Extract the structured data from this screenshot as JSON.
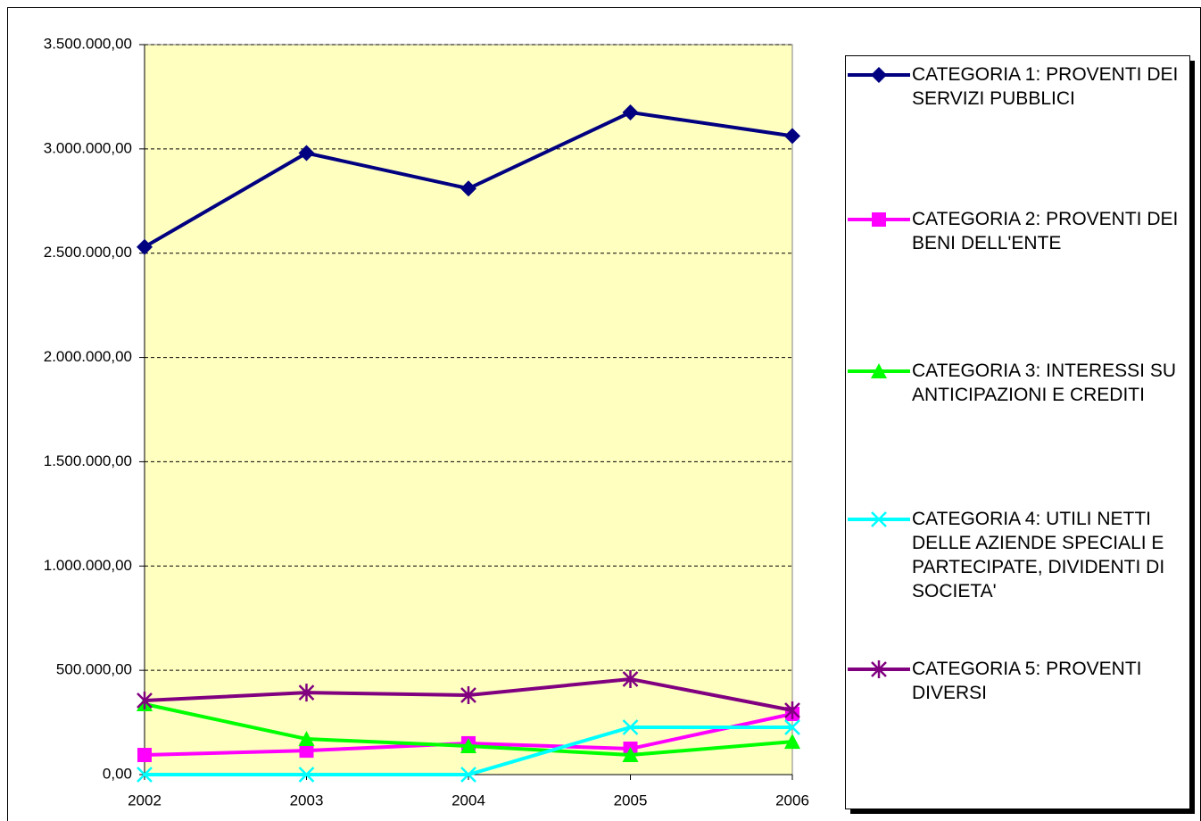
{
  "chart_data": {
    "type": "line",
    "categories": [
      "2002",
      "2003",
      "2004",
      "2005",
      "2006"
    ],
    "series": [
      {
        "name": "CATEGORIA 1: PROVENTI DEI SERVIZI PUBBLICI",
        "color": "#000080",
        "marker": "diamond",
        "values": [
          2530000,
          2980000,
          2810000,
          3175000,
          3062000
        ]
      },
      {
        "name": "CATEGORIA 2: PROVENTI DEI BENI DELL'ENTE",
        "color": "#ff00ff",
        "marker": "square",
        "values": [
          94000,
          115000,
          150000,
          124000,
          291000
        ]
      },
      {
        "name": "CATEGORIA 3: INTERESSI SU ANTICIPAZIONI E CREDITI",
        "color": "#00ff00",
        "marker": "triangle",
        "values": [
          338000,
          171000,
          137000,
          94000,
          158000
        ]
      },
      {
        "name": "CATEGORIA 4: UTILI NETTI DELLE AZIENDE SPECIALI E PARTECIPATE, DIVIDENTI DI SOCIETA'",
        "color": "#00ffff",
        "marker": "x",
        "values": [
          0,
          0,
          0,
          227000,
          227000
        ]
      },
      {
        "name": "CATEGORIA 5: PROVENTI DIVERSI",
        "color": "#800080",
        "marker": "star",
        "values": [
          355000,
          393000,
          381000,
          458000,
          308000
        ]
      }
    ],
    "ylim": [
      0,
      3500000
    ],
    "yticks": [
      {
        "value": 0,
        "label": "0,00"
      },
      {
        "value": 500000,
        "label": "500.000,00"
      },
      {
        "value": 1000000,
        "label": "1.000.000,00"
      },
      {
        "value": 1500000,
        "label": "1.500.000,00"
      },
      {
        "value": 2000000,
        "label": "2.000.000,00"
      },
      {
        "value": 2500000,
        "label": "2.500.000,00"
      },
      {
        "value": 3000000,
        "label": "3.000.000,00"
      },
      {
        "value": 3500000,
        "label": "3.500.000,00"
      }
    ],
    "grid": true,
    "plot_background": "#ffffc0",
    "legend": "right"
  }
}
